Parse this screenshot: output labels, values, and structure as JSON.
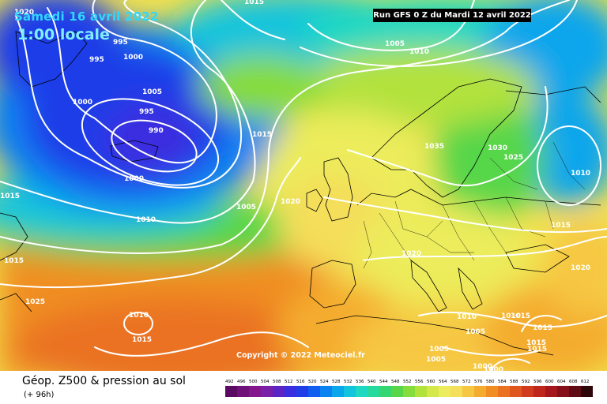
{
  "header": {
    "valid_date": "Samedi 16 avril 2022",
    "valid_time": "1:00 locale",
    "run_info": "Run GFS 0 Z du Mardi 12 avril 2022"
  },
  "copyright": "Copyright © 2022 Meteociel.fr",
  "footer": {
    "title": "Géop. Z500 & pression au sol",
    "subtitle": "(+ 96h)"
  },
  "legend": {
    "ticks": [
      "492",
      "496",
      "500",
      "504",
      "508",
      "512",
      "516",
      "520",
      "524",
      "528",
      "532",
      "536",
      "540",
      "544",
      "548",
      "552",
      "556",
      "560",
      "564",
      "568",
      "572",
      "576",
      "580",
      "584",
      "588",
      "592",
      "596",
      "600",
      "604",
      "608",
      "612"
    ],
    "colors": [
      "#5a0a63",
      "#6e1178",
      "#83168d",
      "#7a1fa8",
      "#5b25c6",
      "#3a2fe0",
      "#1f3ee8",
      "#0f5ef0",
      "#0a82f2",
      "#0aa6ec",
      "#12c4dc",
      "#1ed8c2",
      "#26d99c",
      "#34d671",
      "#57d64a",
      "#86dc3a",
      "#b2e23c",
      "#d4e84a",
      "#ecec5c",
      "#f4de5a",
      "#f6c742",
      "#f4ac2f",
      "#f08e23",
      "#ea7220",
      "#e0561f",
      "#d23c1e",
      "#bf271d",
      "#a5171c",
      "#86101a",
      "#5f0b14",
      "#2c0608"
    ]
  },
  "map": {
    "isobar_labels": [
      {
        "text": "1020"
      },
      {
        "text": "995"
      },
      {
        "text": "995"
      },
      {
        "text": "1000"
      },
      {
        "text": "1000"
      },
      {
        "text": "1005"
      },
      {
        "text": "995"
      },
      {
        "text": "990"
      },
      {
        "text": "1000"
      },
      {
        "text": "1015"
      },
      {
        "text": "1010"
      },
      {
        "text": "1005"
      },
      {
        "text": "1015"
      },
      {
        "text": "1020"
      },
      {
        "text": "1015"
      },
      {
        "text": "1025"
      },
      {
        "text": "1010"
      },
      {
        "text": "1015"
      },
      {
        "text": "1005"
      },
      {
        "text": "1010"
      },
      {
        "text": "1035"
      },
      {
        "text": "1030"
      },
      {
        "text": "1025"
      },
      {
        "text": "1010"
      },
      {
        "text": "1015"
      },
      {
        "text": "1020"
      },
      {
        "text": "1020"
      },
      {
        "text": "1010"
      },
      {
        "text": "1005"
      },
      {
        "text": "1010"
      },
      {
        "text": "1015"
      },
      {
        "text": "1015"
      },
      {
        "text": "1015"
      },
      {
        "text": "1005"
      },
      {
        "text": "1005"
      },
      {
        "text": "1000"
      },
      {
        "text": "1000"
      },
      {
        "text": "1015"
      },
      {
        "text": "1015"
      }
    ]
  }
}
